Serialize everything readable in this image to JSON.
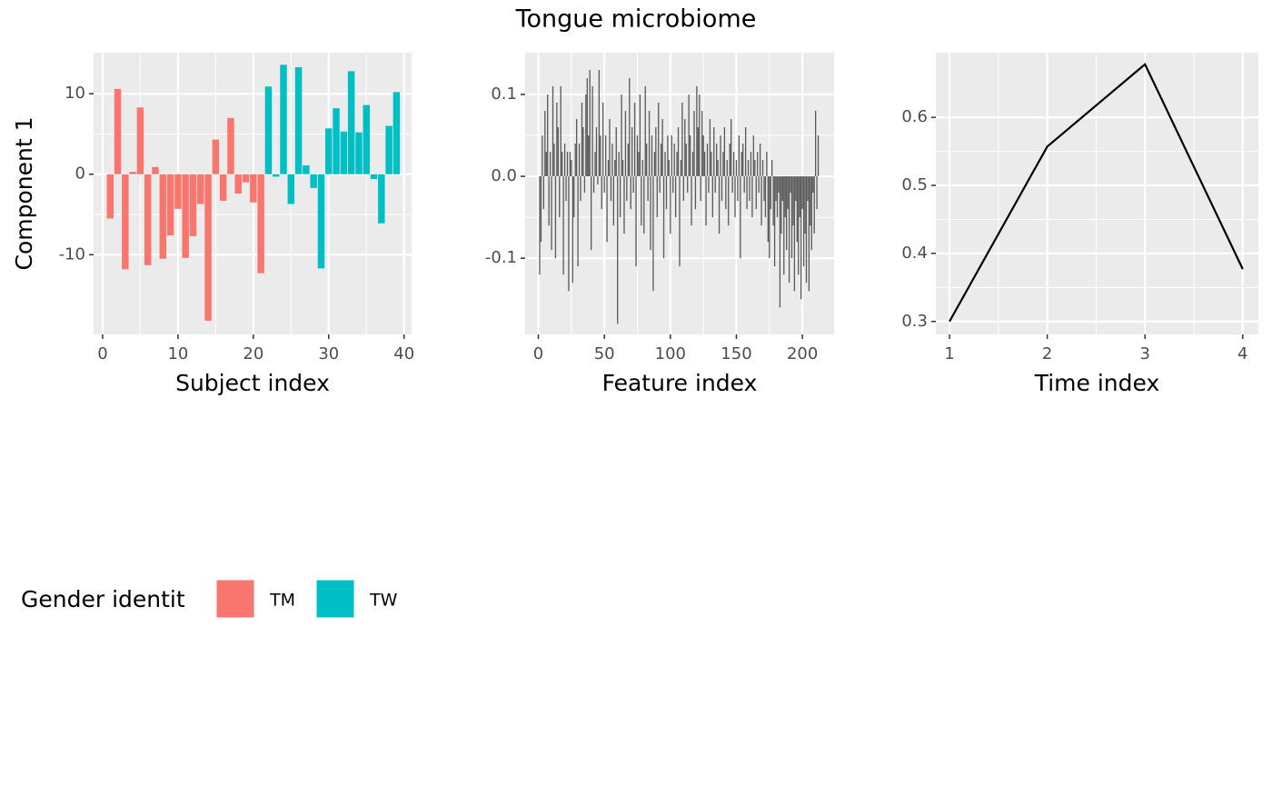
{
  "title": "Tongue microbiome",
  "chart_data": [
    {
      "type": "bar",
      "xlabel": "Subject index",
      "ylabel": "Component 1",
      "legend_title": "Gender identit",
      "legend": "bottom-left",
      "grid": true,
      "xlim": [
        -1.2,
        41
      ],
      "ylim": [
        -19.9,
        15.1
      ],
      "xticks": [
        0,
        10,
        20,
        30,
        40
      ],
      "yticks": [
        -10,
        0,
        10
      ],
      "series": [
        {
          "name": "TM",
          "color": "#f8766d",
          "x": [
            1,
            2,
            3,
            4,
            5,
            6,
            7,
            8,
            9,
            10,
            11,
            12,
            13,
            14,
            15,
            16,
            17,
            18,
            19,
            20,
            21
          ],
          "values": [
            -5.5,
            10.6,
            -11.8,
            0.3,
            8.3,
            -11.3,
            0.9,
            -10.5,
            -7.6,
            -4.3,
            -10.4,
            -7.7,
            -3.7,
            -18.2,
            4.3,
            -3.3,
            7.0,
            -2.4,
            -1.0,
            -3.5,
            -12.3
          ]
        },
        {
          "name": "TW",
          "color": "#00bfc4",
          "x": [
            22,
            23,
            24,
            25,
            26,
            27,
            28,
            29,
            30,
            31,
            32,
            33,
            34,
            35,
            36,
            37,
            38,
            39
          ],
          "values": [
            10.9,
            -0.3,
            13.6,
            -3.7,
            13.3,
            1.1,
            -1.7,
            -11.7,
            5.7,
            8.2,
            5.3,
            12.8,
            5.2,
            8.6,
            -0.6,
            -6.1,
            6.0,
            10.2
          ]
        }
      ]
    },
    {
      "type": "bar",
      "xlabel": "Feature index",
      "color": "#595959",
      "grid": true,
      "xlim": [
        -10,
        224
      ],
      "ylim": [
        -0.193,
        0.151
      ],
      "xticks": [
        0,
        50,
        100,
        150,
        200
      ],
      "yticks": [
        -0.1,
        {
          "value": 0,
          "label": "0.0"
        },
        0.1
      ],
      "x": [
        1,
        2,
        3,
        4,
        5,
        6,
        7,
        8,
        9,
        10,
        11,
        12,
        13,
        14,
        15,
        16,
        17,
        18,
        19,
        20,
        21,
        22,
        23,
        24,
        25,
        26,
        27,
        28,
        29,
        30,
        31,
        32,
        33,
        34,
        35,
        36,
        37,
        38,
        39,
        40,
        41,
        42,
        43,
        44,
        45,
        46,
        47,
        48,
        49,
        50,
        51,
        52,
        53,
        54,
        55,
        56,
        57,
        58,
        59,
        60,
        61,
        62,
        63,
        64,
        65,
        66,
        67,
        68,
        69,
        70,
        71,
        72,
        73,
        74,
        75,
        76,
        77,
        78,
        79,
        80,
        81,
        82,
        83,
        84,
        85,
        86,
        87,
        88,
        89,
        90,
        91,
        92,
        93,
        94,
        95,
        96,
        97,
        98,
        99,
        100,
        101,
        102,
        103,
        104,
        105,
        106,
        107,
        108,
        109,
        110,
        111,
        112,
        113,
        114,
        115,
        116,
        117,
        118,
        119,
        120,
        121,
        122,
        123,
        124,
        125,
        126,
        127,
        128,
        129,
        130,
        131,
        132,
        133,
        134,
        135,
        136,
        137,
        138,
        139,
        140,
        141,
        142,
        143,
        144,
        145,
        146,
        147,
        148,
        149,
        150,
        151,
        152,
        153,
        154,
        155,
        156,
        157,
        158,
        159,
        160,
        161,
        162,
        163,
        164,
        165,
        166,
        167,
        168,
        169,
        170,
        171,
        172,
        173,
        174,
        175,
        176,
        177,
        178,
        179,
        180,
        181,
        182,
        183,
        184,
        185,
        186,
        187,
        188,
        189,
        190,
        191,
        192,
        193,
        194,
        195,
        196,
        197,
        198,
        199,
        200,
        201,
        202,
        203,
        204,
        205,
        206,
        207,
        208,
        209,
        210,
        211,
        212
      ],
      "values": [
        -0.12,
        -0.08,
        0.05,
        -0.04,
        0.08,
        0.03,
        0.1,
        -0.06,
        0.03,
        -0.09,
        0.11,
        0.04,
        -0.1,
        0.09,
        0.06,
        -0.05,
        0.11,
        0.03,
        -0.12,
        0.04,
        -0.03,
        0.03,
        -0.14,
        0.03,
        0.02,
        -0.13,
        -0.05,
        0.04,
        0.07,
        -0.11,
        0.04,
        -0.03,
        0.09,
        0.06,
        -0.02,
        0.1,
        0.12,
        0.05,
        0.13,
        -0.09,
        0.11,
        -0.02,
        0.03,
        0.06,
        -0.01,
        0.13,
        0.05,
        -0.04,
        0.09,
        -0.02,
        0.05,
        -0.08,
        0.02,
        0.07,
        -0.03,
        0.04,
        -0.06,
        0.02,
        0.06,
        -0.18,
        0.03,
        -0.05,
        0.1,
        0.02,
        -0.07,
        0.08,
        -0.03,
        0.04,
        0.12,
        -0.04,
        0.06,
        -0.02,
        0.09,
        -0.11,
        0.05,
        0.03,
        0.1,
        -0.06,
        0.02,
        -0.07,
        0.11,
        0.04,
        -0.03,
        0.08,
        -0.09,
        0.05,
        -0.14,
        0.03,
        0.06,
        -0.05,
        0.09,
        -0.02,
        0.04,
        0.07,
        -0.1,
        0.03,
        -0.04,
        0.05,
        0.02,
        -0.07,
        0.05,
        -0.02,
        0.04,
        -0.05,
        0.03,
        0.06,
        -0.11,
        0.02,
        0.09,
        -0.03,
        0.07,
        0.04,
        -0.02,
        0.1,
        0.05,
        -0.06,
        0.03,
        0.08,
        -0.04,
        0.11,
        0.06,
        0.1,
        -0.03,
        0.08,
        0.05,
        0.03,
        -0.06,
        0.04,
        -0.02,
        0.07,
        0.03,
        -0.05,
        0.06,
        -0.02,
        0.04,
        0.02,
        -0.07,
        0.05,
        -0.03,
        0.03,
        0.06,
        -0.04,
        0.02,
        -0.06,
        0.04,
        0.07,
        -0.02,
        0.03,
        -0.05,
        0.02,
        -0.03,
        0.05,
        -0.1,
        0.03,
        0.04,
        -0.02,
        0.06,
        -0.04,
        0.02,
        -0.03,
        0.03,
        -0.05,
        0.05,
        0.02,
        -0.04,
        0.03,
        -0.02,
        0.04,
        -0.06,
        0.02,
        -0.03,
        -0.05,
        0.03,
        -0.08,
        -0.1,
        -0.04,
        0.02,
        -0.06,
        -0.11,
        -0.03,
        -0.05,
        -0.02,
        -0.16,
        -0.07,
        -0.03,
        -0.12,
        -0.05,
        -0.09,
        -0.04,
        -0.13,
        -0.02,
        -0.1,
        -0.06,
        -0.14,
        -0.03,
        -0.08,
        -0.12,
        -0.05,
        -0.15,
        -0.04,
        -0.11,
        -0.07,
        -0.13,
        -0.03,
        -0.14,
        -0.06,
        -0.09,
        -0.02,
        -0.07,
        0.08,
        -0.04,
        0.05
      ]
    },
    {
      "type": "line",
      "xlabel": "Time index",
      "color": "#000000",
      "grid": true,
      "xlim": [
        0.86,
        4.16
      ],
      "ylim": [
        0.281,
        0.695
      ],
      "xticks": [
        1,
        2,
        3,
        4
      ],
      "yticks": [
        0.3,
        0.4,
        0.5,
        0.6
      ],
      "x": [
        1,
        2,
        3,
        4
      ],
      "values": [
        0.3,
        0.557,
        0.678,
        0.377
      ]
    }
  ]
}
